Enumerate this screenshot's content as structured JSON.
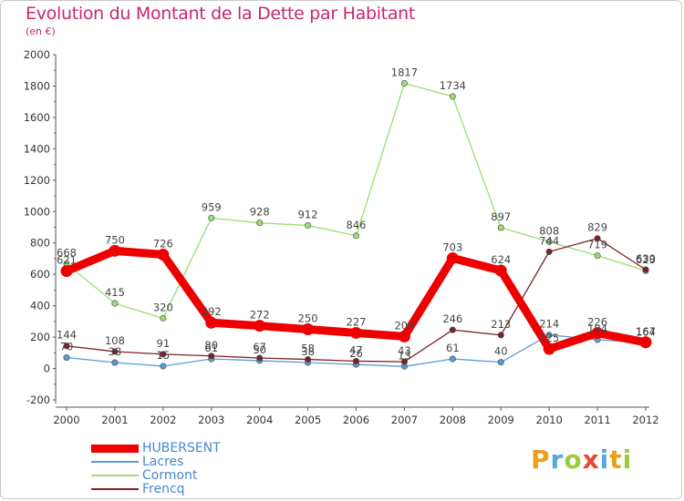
{
  "chart_data": {
    "type": "line",
    "title": "Evolution du Montant de la Dette par Habitant",
    "subtitle": "(en €)",
    "x": [
      "2000",
      "2001",
      "2002",
      "2003",
      "2004",
      "2005",
      "2006",
      "2007",
      "2008",
      "2009",
      "2010",
      "2011",
      "2012"
    ],
    "ylim": [
      -200,
      2000
    ],
    "yticks": [
      "-200",
      "0",
      "200",
      "400",
      "600",
      "800",
      "1000",
      "1200",
      "1400",
      "1600",
      "1800",
      "2000"
    ],
    "grid": false,
    "legend_position": "bottom-left",
    "series": [
      {
        "name": "HUBERSENT",
        "color": "#ee0000",
        "values": [
          621,
          750,
          726,
          292,
          272,
          250,
          227,
          204,
          703,
          624,
          125,
          226,
          167
        ]
      },
      {
        "name": "Lacres",
        "color": "#5b9bd5",
        "values": [
          70,
          38,
          15,
          61,
          50,
          38,
          26,
          13,
          61,
          40,
          214,
          184,
          164
        ]
      },
      {
        "name": "Cormont",
        "color": "#99dd77",
        "values": [
          668,
          415,
          320,
          959,
          928,
          912,
          846,
          1817,
          1734,
          897,
          808,
          719,
          623
        ]
      },
      {
        "name": "Frencq",
        "color": "#7b2328",
        "values": [
          144,
          108,
          91,
          80,
          67,
          58,
          47,
          43,
          246,
          213,
          744,
          829,
          630
        ]
      }
    ],
    "data_labels": [
      [
        "621",
        "750",
        "726",
        "292",
        "272",
        "250",
        "227",
        "204",
        "703",
        "624",
        "125",
        "226",
        "167"
      ],
      [
        "70",
        "38",
        "15",
        "61",
        "50",
        "38",
        "26",
        "13",
        "61",
        "40",
        "214",
        "184",
        "164"
      ],
      [
        "668",
        "415",
        "320",
        "959",
        "928",
        "912",
        "846",
        "1817",
        "1734",
        "897",
        "808",
        "719",
        "623"
      ],
      [
        "144",
        "108",
        "91",
        "80",
        "67",
        "58",
        "47",
        "43",
        "246",
        "213",
        "744",
        "829",
        "630"
      ]
    ]
  },
  "logo": {
    "letters": [
      "P",
      "r",
      "o",
      "x",
      "i",
      "t",
      "i"
    ],
    "colors": [
      "#e8a21a",
      "#58a8d8",
      "#9acb3c",
      "#e64a2e",
      "#58a8d8",
      "#e8a21a",
      "#9acb3c"
    ]
  }
}
